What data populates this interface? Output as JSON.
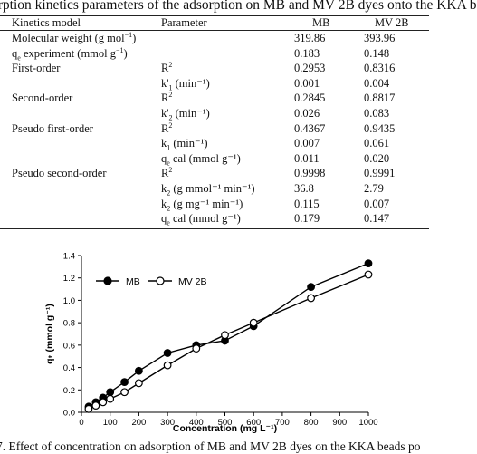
{
  "table": {
    "caption": "orption kinetics parameters of the adsorption on MB and MV 2B dyes onto the KKA b",
    "headers": {
      "model": "Kinetics model",
      "parameter": "Parameter",
      "mb": "MB",
      "mv": "MV 2B"
    },
    "rows": [
      {
        "model": "Molecular weight (g mol",
        "model_sup": "−1",
        "model_tail": ")",
        "p": "",
        "p_mark": "",
        "p_mark_type": "",
        "p_tail": "",
        "mb": "319.86",
        "mv": "393.96"
      },
      {
        "model": "q",
        "model_sub": "e",
        "model_tail": " experiment (mmol g",
        "model_sup2": "−1",
        "model_tail2": ")",
        "p": "",
        "p_mark": "",
        "p_mark_type": "",
        "p_tail": "",
        "mb": "0.183",
        "mv": "0.148"
      },
      {
        "model": "First-order",
        "p": "R",
        "p_mark": "2",
        "p_mark_type": "sup",
        "p_tail": "",
        "mb": "0.2953",
        "mv": "0.8316"
      },
      {
        "model": "",
        "p": "k'",
        "p_mark": "1",
        "p_mark_type": "sub",
        "p_tail": " (min⁻¹)",
        "mb": "0.001",
        "mv": "0.004"
      },
      {
        "model": "Second-order",
        "p": "R",
        "p_mark": "2",
        "p_mark_type": "sup",
        "p_tail": "",
        "mb": "0.2845",
        "mv": "0.8817"
      },
      {
        "model": "",
        "p": "k'",
        "p_mark": "2",
        "p_mark_type": "sub",
        "p_tail": " (min⁻¹)",
        "mb": "0.026",
        "mv": "0.083"
      },
      {
        "model": "Pseudo first-order",
        "p": "R",
        "p_mark": "2",
        "p_mark_type": "sup",
        "p_tail": "",
        "mb": "0.4367",
        "mv": "0.9435"
      },
      {
        "model": "",
        "p": "k",
        "p_mark": "1",
        "p_mark_type": "sub",
        "p_tail": " (min⁻¹)",
        "mb": "0.007",
        "mv": "0.061"
      },
      {
        "model": "",
        "p": "q",
        "p_mark": "e",
        "p_mark_type": "sub",
        "p_tail": " cal (mmol g⁻¹)",
        "mb": "0.011",
        "mv": "0.020"
      },
      {
        "model": "Pseudo second-order",
        "p": "R",
        "p_mark": "2",
        "p_mark_type": "sup",
        "p_tail": "",
        "mb": "0.9998",
        "mv": "0.9991"
      },
      {
        "model": "",
        "p": "k",
        "p_mark": "2",
        "p_mark_type": "sub",
        "p_tail": " (g mmol⁻¹ min⁻¹)",
        "mb": "36.8",
        "mv": "2.79"
      },
      {
        "model": "",
        "p": "k",
        "p_mark": "2",
        "p_mark_type": "sub",
        "p_tail": " (g mg⁻¹ min⁻¹)",
        "mb": "0.115",
        "mv": "0.007"
      },
      {
        "model": "",
        "p": "q",
        "p_mark": "e",
        "p_mark_type": "sub",
        "p_tail": " cal (mmol g⁻¹)",
        "mb": "0.179",
        "mv": "0.147"
      }
    ]
  },
  "chart_data": {
    "type": "line",
    "xlabel": "Concentration (mg L⁻¹)",
    "ylabel": "qₜ (mmol g⁻¹)",
    "xlim": [
      0,
      1000
    ],
    "ylim": [
      0,
      1.4
    ],
    "xticks": [
      "0",
      "100",
      "200",
      "300",
      "400",
      "500",
      "600",
      "700",
      "800",
      "900",
      "1000"
    ],
    "yticks": [
      "0.0",
      "0.2",
      "0.4",
      "0.6",
      "0.8",
      "1.0",
      "1.2",
      "1.4"
    ],
    "x": [
      25,
      50,
      75,
      100,
      150,
      200,
      300,
      400,
      500,
      600,
      800,
      1000
    ],
    "legend_position": "top-left",
    "series": [
      {
        "name": "MB",
        "marker": "filled-circle",
        "values": [
          0.05,
          0.09,
          0.13,
          0.18,
          0.27,
          0.37,
          0.53,
          0.6,
          0.64,
          0.77,
          1.12,
          1.33
        ]
      },
      {
        "name": "MV 2B",
        "marker": "open-circle",
        "values": [
          0.03,
          0.06,
          0.09,
          0.12,
          0.18,
          0.26,
          0.42,
          0.57,
          0.69,
          0.8,
          1.02,
          1.23
        ]
      }
    ]
  },
  "figure_caption": "7. Effect of concentration on adsorption of MB and MV 2B dyes on the KKA beads po"
}
